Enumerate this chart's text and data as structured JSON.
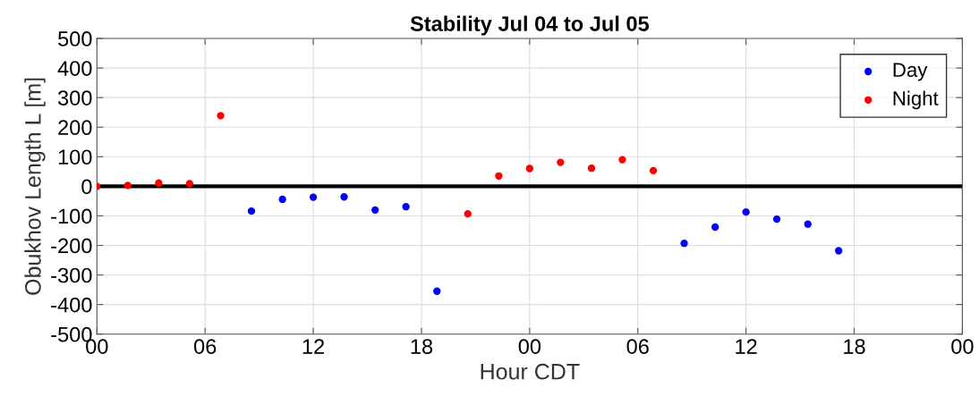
{
  "chart_data": {
    "type": "scatter",
    "title": "Stability Jul 04 to Jul 05",
    "xlabel": "Hour CDT",
    "ylabel": "Obukhov Length L [m]",
    "series": [
      {
        "name": "Day",
        "color": "#0000ff",
        "x": [
          8.57,
          10.29,
          12,
          13.71,
          15.43,
          17.14,
          18.86,
          32.57,
          34.29,
          36,
          37.71,
          39.43,
          41.14
        ],
        "values": [
          -84,
          -44,
          -37,
          -36,
          -80,
          -69,
          -355,
          -193,
          -138,
          -87,
          -111,
          -128,
          -218
        ]
      },
      {
        "name": "Night",
        "color": "#ff0000",
        "x": [
          0,
          1.71,
          3.43,
          5.14,
          6.86,
          20.57,
          22.29,
          24,
          25.71,
          27.43,
          29.14,
          30.86
        ],
        "values": [
          0,
          3,
          11,
          9,
          239,
          -93,
          35,
          60,
          81,
          61,
          90,
          53
        ]
      }
    ],
    "marker": "circle",
    "xlim": [
      0,
      48
    ],
    "xticks": [
      {
        "value": 0,
        "label": "00"
      },
      {
        "value": 6,
        "label": "06"
      },
      12,
      18,
      {
        "value": 24,
        "label": "00"
      },
      {
        "value": 30,
        "label": "06"
      },
      {
        "value": 36,
        "label": "12"
      },
      {
        "value": 42,
        "label": "18"
      },
      {
        "value": 48,
        "label": "00"
      }
    ],
    "ylim": [
      -500,
      500
    ],
    "yticks": [
      -500,
      -400,
      -300,
      -200,
      -100,
      0,
      100,
      200,
      300,
      400,
      500
    ],
    "ref_lines": [
      {
        "axis": "y",
        "value": 0,
        "color": "#000000",
        "line_style": "solid"
      }
    ],
    "grid": true,
    "legend": "top right"
  }
}
